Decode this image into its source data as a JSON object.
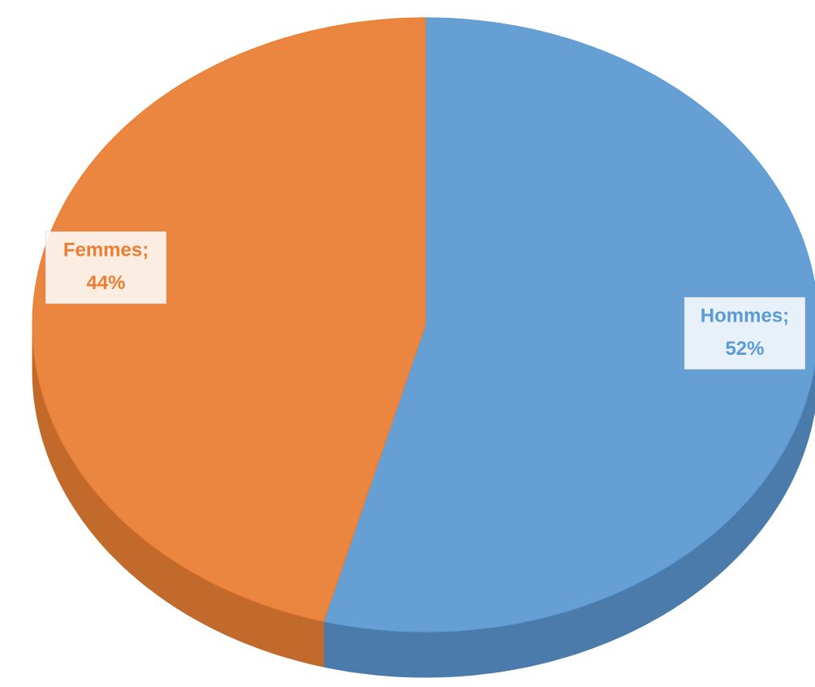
{
  "chart_data": {
    "type": "pie",
    "categories": [
      "Hommes",
      "Femmes"
    ],
    "label_separator": ";",
    "values": [
      52,
      44
    ],
    "value_labels": [
      "52%",
      "44%"
    ],
    "colors": [
      "#659fd4",
      "#ea8640"
    ],
    "side_colors": [
      "#4a7bab",
      "#c26a2c"
    ],
    "label_colors": [
      "#5b9bd5",
      "#ed7d31"
    ],
    "start_angle": 0,
    "direction": "clockwise",
    "three_d": true
  }
}
